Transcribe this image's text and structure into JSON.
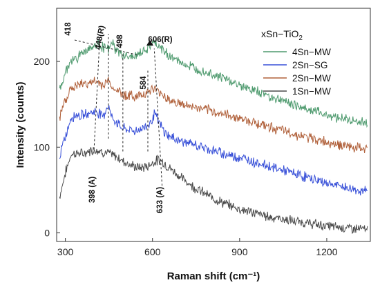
{
  "chart_data": {
    "type": "line",
    "title": "",
    "xlabel": "Raman shift (cm⁻¹)",
    "ylabel": "Intensity (counts)",
    "xlim": [
      270,
      1350
    ],
    "ylim": [
      -10,
      262
    ],
    "xticks": [
      300,
      600,
      900,
      1200
    ],
    "yticks": [
      0,
      100,
      200
    ],
    "grid": false,
    "legend": {
      "title": "xSn−TiO",
      "title_sub": "2",
      "placement": "top-right",
      "entries": [
        "4Sn−MW",
        "2Sn−SG",
        "2Sn−MW",
        "1Sn−MW"
      ]
    },
    "series": [
      {
        "name": "4Sn−MW",
        "color": "#4e9a6e",
        "x": [
          280,
          300,
          320,
          340,
          360,
          380,
          400,
          418,
          430,
          448,
          460,
          480,
          498,
          520,
          540,
          560,
          584,
          600,
          606,
          620,
          640,
          660,
          700,
          750,
          800,
          850,
          900,
          1000,
          1100,
          1200,
          1300,
          1340
        ],
        "y": [
          165,
          188,
          200,
          205,
          210,
          216,
          218,
          220,
          217,
          213,
          222,
          210,
          208,
          205,
          206,
          210,
          215,
          220,
          221,
          218,
          212,
          206,
          198,
          192,
          186,
          180,
          172,
          160,
          148,
          138,
          130,
          128
        ]
      },
      {
        "name": "2Sn−SG",
        "color": "#3850d8",
        "x": [
          280,
          300,
          320,
          340,
          360,
          380,
          400,
          418,
          430,
          448,
          460,
          480,
          498,
          520,
          540,
          560,
          584,
          600,
          606,
          620,
          640,
          660,
          700,
          750,
          800,
          850,
          900,
          1000,
          1100,
          1200,
          1300,
          1340
        ],
        "y": [
          90,
          112,
          135,
          138,
          137,
          140,
          142,
          140,
          136,
          150,
          134,
          128,
          122,
          120,
          119,
          121,
          126,
          132,
          140,
          130,
          118,
          112,
          107,
          102,
          97,
          92,
          88,
          78,
          68,
          58,
          50,
          48
        ]
      },
      {
        "name": "2Sn−MW",
        "color": "#b0603a",
        "x": [
          280,
          300,
          320,
          340,
          360,
          380,
          400,
          418,
          430,
          448,
          460,
          480,
          498,
          520,
          540,
          560,
          584,
          600,
          606,
          620,
          640,
          660,
          700,
          750,
          800,
          850,
          900,
          1000,
          1100,
          1200,
          1300,
          1340
        ],
        "y": [
          135,
          156,
          168,
          172,
          174,
          175,
          176,
          175,
          172,
          178,
          170,
          166,
          162,
          160,
          159,
          161,
          165,
          167,
          168,
          165,
          160,
          155,
          150,
          146,
          142,
          138,
          134,
          124,
          114,
          106,
          99,
          98
        ]
      },
      {
        "name": "1Sn−MW",
        "color": "#4a4a4a",
        "x": [
          280,
          300,
          320,
          340,
          360,
          380,
          398,
          418,
          430,
          448,
          460,
          480,
          498,
          520,
          540,
          560,
          584,
          600,
          620,
          633,
          650,
          680,
          700,
          750,
          800,
          850,
          900,
          1000,
          1100,
          1200,
          1300,
          1340
        ],
        "y": [
          42,
          70,
          92,
          93,
          92,
          95,
          98,
          96,
          94,
          93,
          91,
          88,
          84,
          80,
          77,
          76,
          78,
          82,
          85,
          84,
          78,
          70,
          64,
          52,
          42,
          34,
          28,
          19,
          13,
          8,
          5,
          4
        ]
      }
    ],
    "annotations": {
      "a418": "418",
      "a448": "448(R)",
      "a498": "498",
      "a606": "606(R)",
      "a584": "584",
      "a398": "398 (A)",
      "a633": "633 (A)"
    }
  }
}
